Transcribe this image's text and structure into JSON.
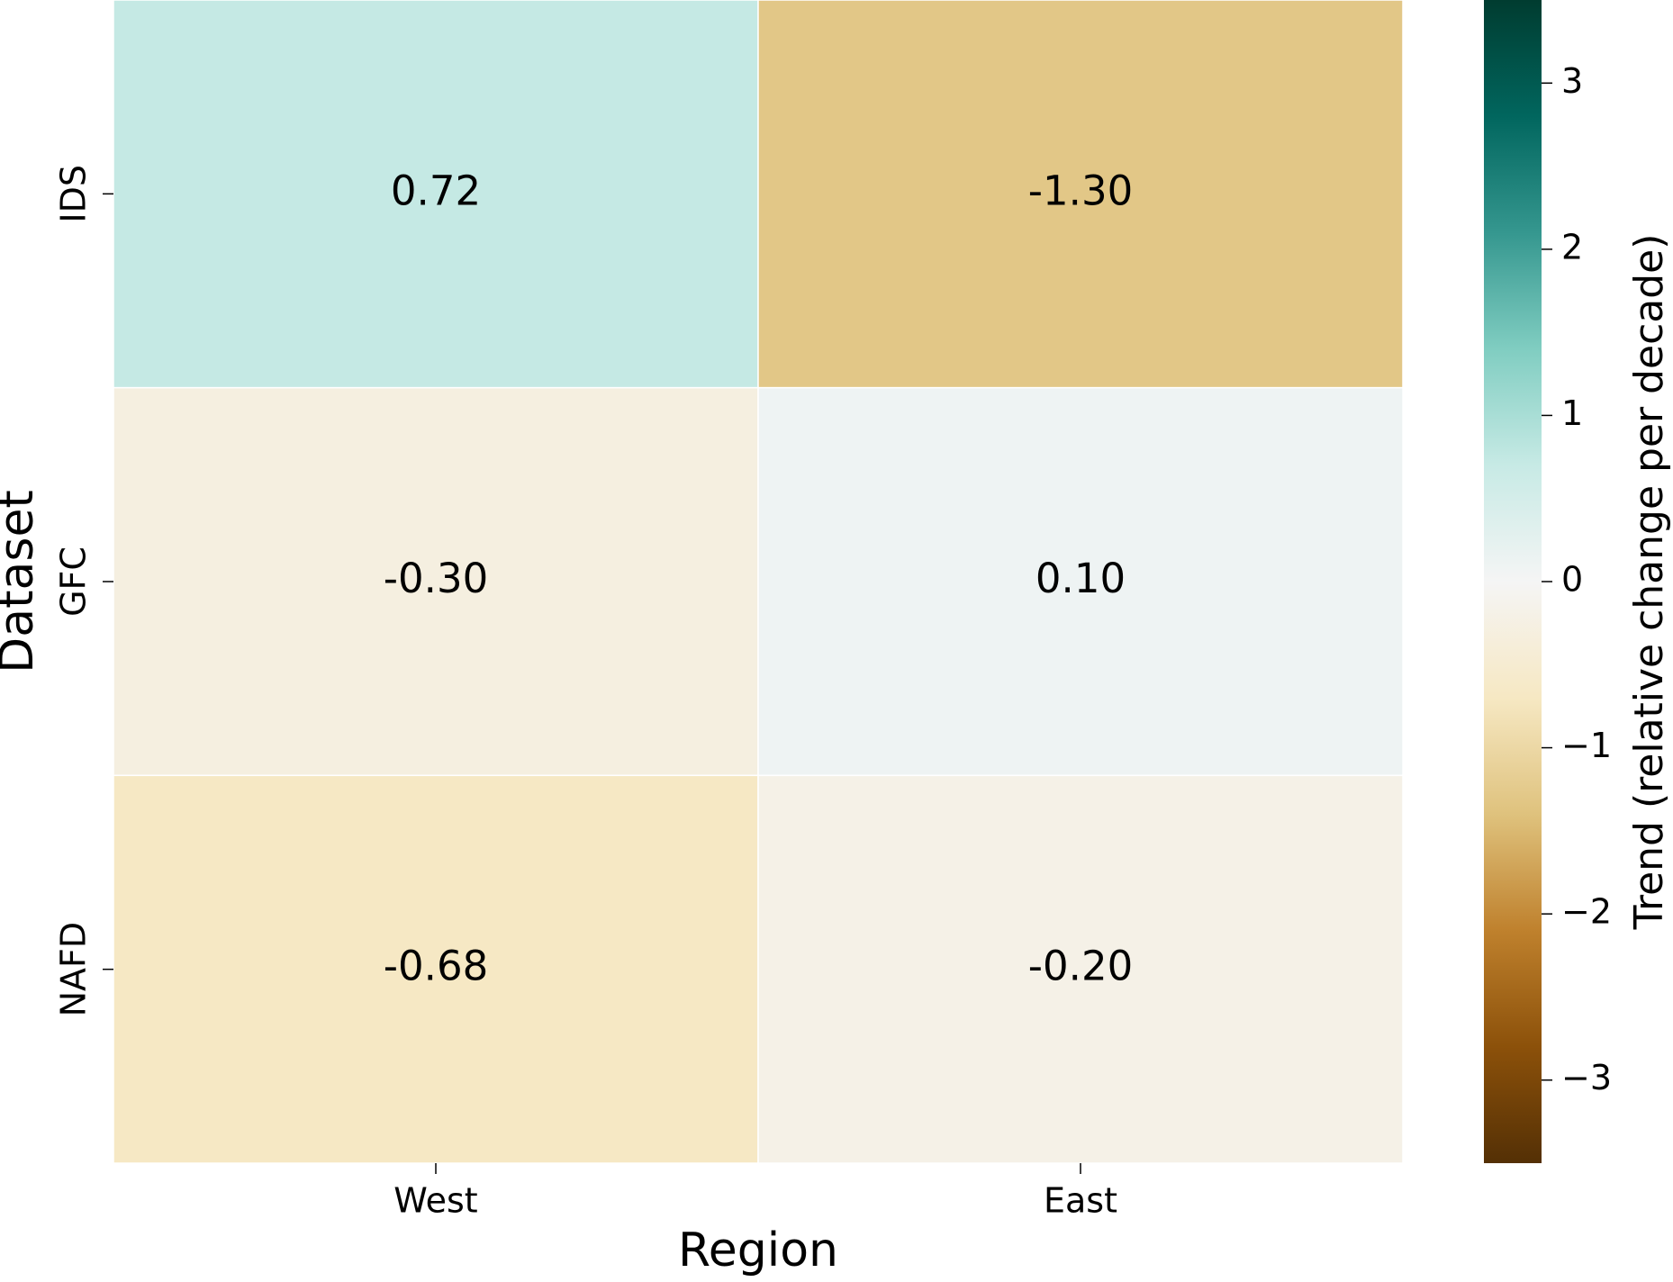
{
  "chart_data": {
    "type": "heatmap",
    "x_label": "Region",
    "y_label": "Dataset",
    "x_categories": [
      "West",
      "East"
    ],
    "y_categories": [
      "IDS",
      "GFC",
      "NAFD"
    ],
    "values": [
      [
        0.72,
        -1.3
      ],
      [
        -0.3,
        0.1
      ],
      [
        -0.68,
        -0.2
      ]
    ],
    "value_labels": [
      [
        "0.72",
        "-1.30"
      ],
      [
        "-0.30",
        "0.10"
      ],
      [
        "-0.68",
        "-0.20"
      ]
    ],
    "colormap": "BrBG",
    "colorbar_label": "Trend (relative change per decade)",
    "clim": [
      -3.5,
      3.5
    ],
    "cticks": [
      {
        "value": -3,
        "label": "−3"
      },
      {
        "value": -2,
        "label": "−2"
      },
      {
        "value": -1,
        "label": "−1"
      },
      0,
      1,
      2,
      3
    ]
  }
}
